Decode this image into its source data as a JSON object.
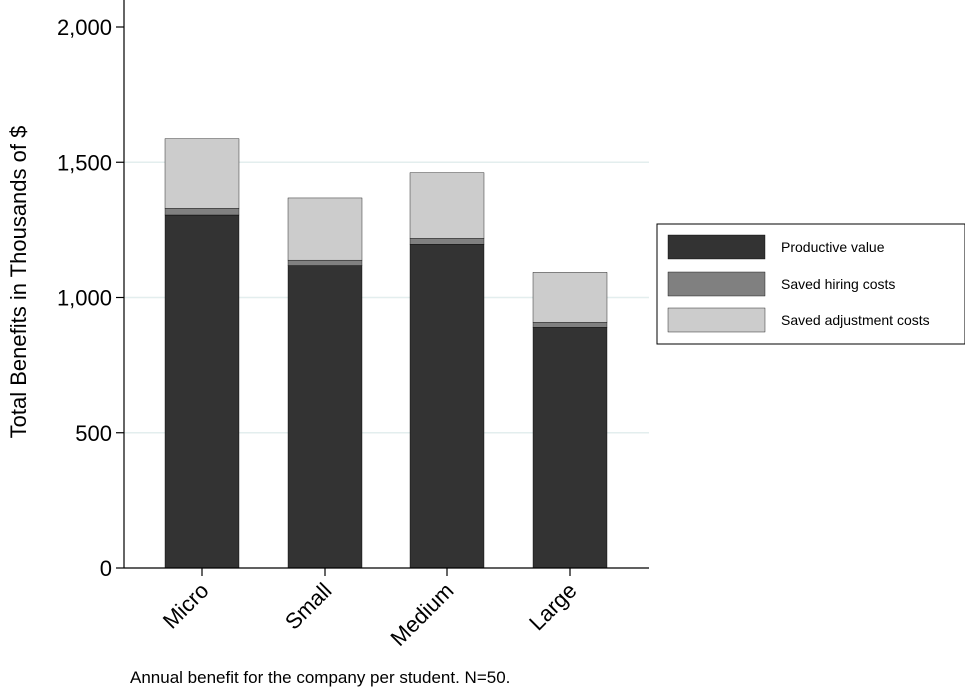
{
  "chart_data": {
    "type": "bar",
    "stacked": true,
    "categories": [
      "Micro",
      "Small",
      "Medium",
      "Large"
    ],
    "series": [
      {
        "name": "Productive value",
        "color": "#333333",
        "values": [
          1305,
          1118,
          1197,
          890
        ]
      },
      {
        "name": "Saved hiring costs",
        "color": "#808080",
        "values": [
          25,
          20,
          22,
          18
        ]
      },
      {
        "name": "Saved adjustment costs",
        "color": "#cccccc",
        "values": [
          257,
          230,
          242,
          185
        ]
      }
    ],
    "title": "",
    "xlabel": "",
    "ylabel": "Total Benefits in Thousands of $",
    "ylim": [
      0,
      2000
    ],
    "yticks": [
      0,
      500,
      1000,
      1500,
      2000
    ],
    "ytick_labels": [
      "0",
      "500",
      "1,000",
      "1,500",
      "2,000"
    ],
    "grid": true,
    "legend_position": "right",
    "note": "Annual benefit for the company per student. N=50."
  }
}
